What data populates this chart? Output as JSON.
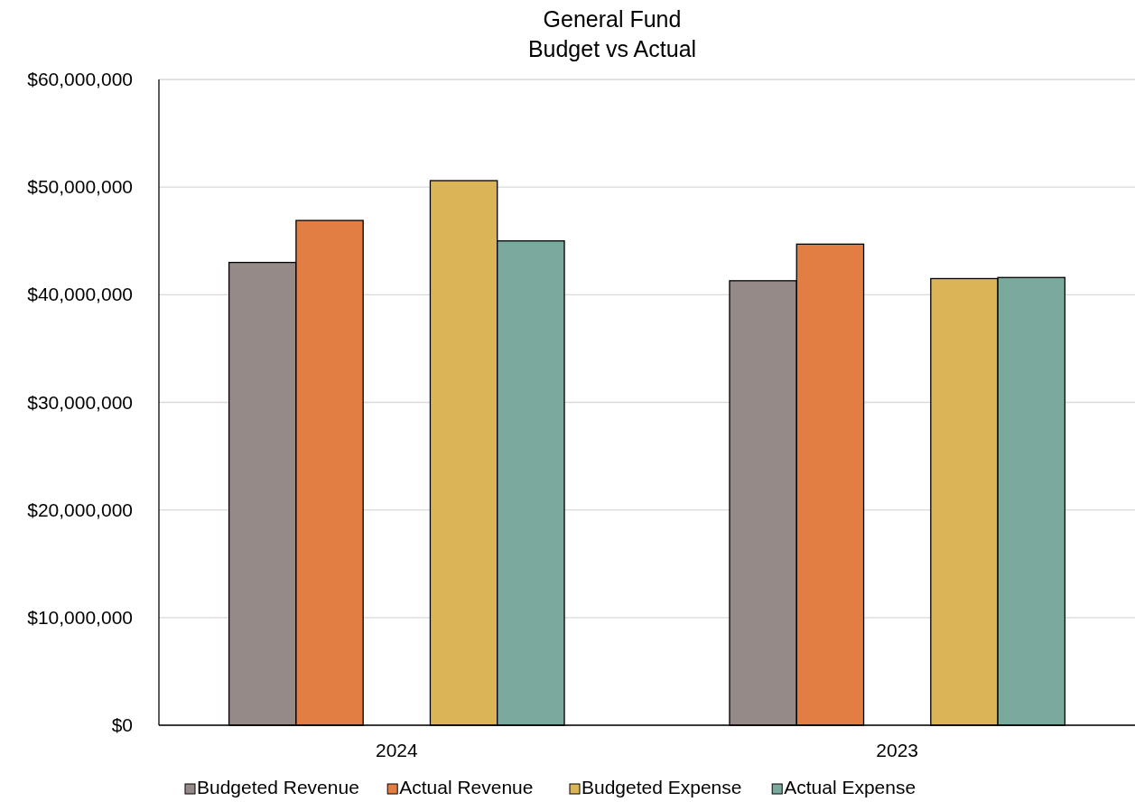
{
  "chart_data": {
    "type": "bar",
    "title": "General Fund\nBudget vs Actual",
    "categories": [
      "2024",
      "2023"
    ],
    "series": [
      {
        "name": "Budgeted Revenue",
        "color": "#968a89",
        "values": [
          43000000,
          41300000
        ]
      },
      {
        "name": "Actual Revenue",
        "color": "#e27d44",
        "values": [
          46900000,
          44700000
        ]
      },
      {
        "values": [
          null,
          null
        ]
      },
      {
        "name": "Budgeted Expense",
        "color": "#dcb458",
        "values": [
          50600000,
          41500000
        ]
      },
      {
        "name": "Actual Expense",
        "color": "#7aa99e",
        "values": [
          45000000,
          41600000
        ]
      }
    ],
    "ylim": [
      0,
      60000000
    ],
    "yticks": [
      {
        "value": 0,
        "label": "$0"
      },
      {
        "value": 10000000,
        "label": "$10,000,000"
      },
      {
        "value": 20000000,
        "label": "$20,000,000"
      },
      {
        "value": 30000000,
        "label": "$30,000,000"
      },
      {
        "value": 40000000,
        "label": "$40,000,000"
      },
      {
        "value": 50000000,
        "label": "$50,000,000"
      },
      {
        "value": 60000000,
        "label": "$60,000,000"
      }
    ],
    "grid": "y",
    "legend": "bottom"
  }
}
